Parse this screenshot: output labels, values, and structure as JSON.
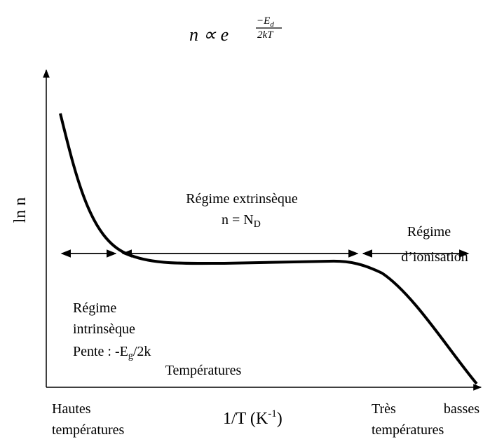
{
  "formula": {
    "base": "n ∝ e",
    "numerator": "−E",
    "numerator_sub": "d",
    "denominator": "2kT"
  },
  "y_label": "ln n",
  "x_label": {
    "text": "1/T (K",
    "sup": "-1",
    "end": ")"
  },
  "regions": {
    "extrinsic": {
      "line1": "Régime extrinsèque",
      "line2": "n = N",
      "line2_sub": "D"
    },
    "ionisation": {
      "line1": "Régime",
      "line2": "d’ionisation"
    },
    "intrinsic": {
      "line1": "Régime",
      "line2": "intrinsèque",
      "line3": "Pente : -E",
      "line3_sub": "g",
      "line3_end": "/2k"
    }
  },
  "temperatures": "Températures",
  "left_end": {
    "line1": "Hautes",
    "line2": "températures"
  },
  "right_end": {
    "line1": "Très",
    "line1b": "basses",
    "line2": "températures"
  }
}
